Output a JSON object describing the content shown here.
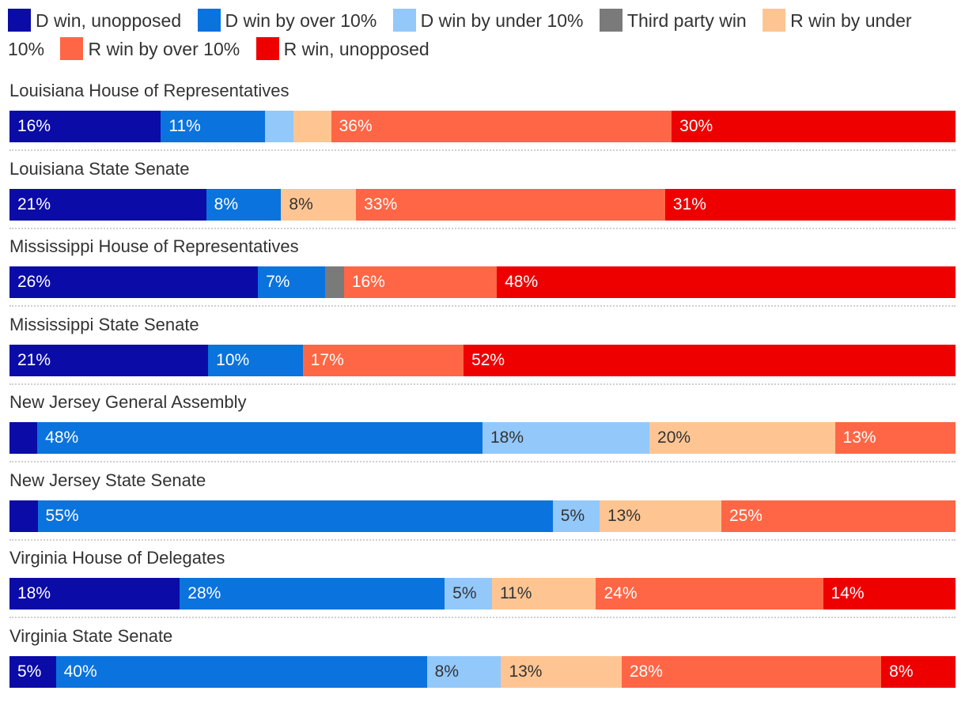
{
  "chart_data": {
    "type": "bar",
    "orientation": "horizontal-stacked-100",
    "title": "",
    "xlabel": "",
    "ylabel": "",
    "series_keys": [
      "d_unopposed",
      "d_over10",
      "d_under10",
      "third",
      "r_under10",
      "r_over10",
      "r_unopposed"
    ],
    "legend": [
      {
        "key": "d_unopposed",
        "label": "D win, unopposed",
        "color": "#0b0ba8",
        "text": "dark"
      },
      {
        "key": "d_over10",
        "label": "D win by over 10%",
        "color": "#0a73dd",
        "text": "dark"
      },
      {
        "key": "d_under10",
        "label": "D win by under 10%",
        "color": "#93c8fb",
        "text": "light"
      },
      {
        "key": "third",
        "label": "Third party win",
        "color": "#7a7a7a",
        "text": "dark"
      },
      {
        "key": "r_under10",
        "label": "R win by under 10%",
        "color": "#fec593",
        "text": "light"
      },
      {
        "key": "r_over10",
        "label": "R win by over 10%",
        "color": "#ff6645",
        "text": "dark"
      },
      {
        "key": "r_unopposed",
        "label": "R win, unopposed",
        "color": "#ee0000",
        "text": "dark"
      }
    ],
    "categories": [
      {
        "name": "Louisiana House of Representatives",
        "values": [
          16,
          11,
          3,
          0,
          4,
          36,
          30
        ],
        "labels": [
          "16%",
          "11%",
          "",
          "",
          "",
          "36%",
          "30%"
        ]
      },
      {
        "name": "Louisiana State Senate",
        "values": [
          21,
          8,
          0,
          0,
          8,
          33,
          31
        ],
        "labels": [
          "21%",
          "8%",
          "",
          "",
          "8%",
          "33%",
          "31%"
        ]
      },
      {
        "name": "Mississippi House of Representatives",
        "values": [
          26,
          7,
          0,
          2,
          0,
          16,
          48
        ],
        "labels": [
          "26%",
          "7%",
          "",
          "",
          "",
          "16%",
          "48%"
        ]
      },
      {
        "name": "Mississippi State Senate",
        "values": [
          21,
          10,
          0,
          0,
          0,
          17,
          52
        ],
        "labels": [
          "21%",
          "10%",
          "",
          "",
          "",
          "17%",
          "52%"
        ]
      },
      {
        "name": "New Jersey General Assembly",
        "values": [
          3,
          48,
          18,
          0,
          20,
          13,
          0
        ],
        "labels": [
          "",
          "48%",
          "18%",
          "",
          "20%",
          "13%",
          ""
        ]
      },
      {
        "name": "New Jersey State Senate",
        "values": [
          3,
          55,
          5,
          0,
          13,
          25,
          0
        ],
        "labels": [
          "",
          "55%",
          "5%",
          "",
          "13%",
          "25%",
          ""
        ]
      },
      {
        "name": "Virginia House of Delegates",
        "values": [
          18,
          28,
          5,
          0,
          11,
          24,
          14
        ],
        "labels": [
          "18%",
          "28%",
          "5%",
          "",
          "11%",
          "24%",
          "14%"
        ]
      },
      {
        "name": "Virginia State Senate",
        "values": [
          5,
          40,
          8,
          0,
          13,
          28,
          8
        ],
        "labels": [
          "5%",
          "40%",
          "8%",
          "",
          "13%",
          "28%",
          "8%"
        ]
      }
    ]
  }
}
